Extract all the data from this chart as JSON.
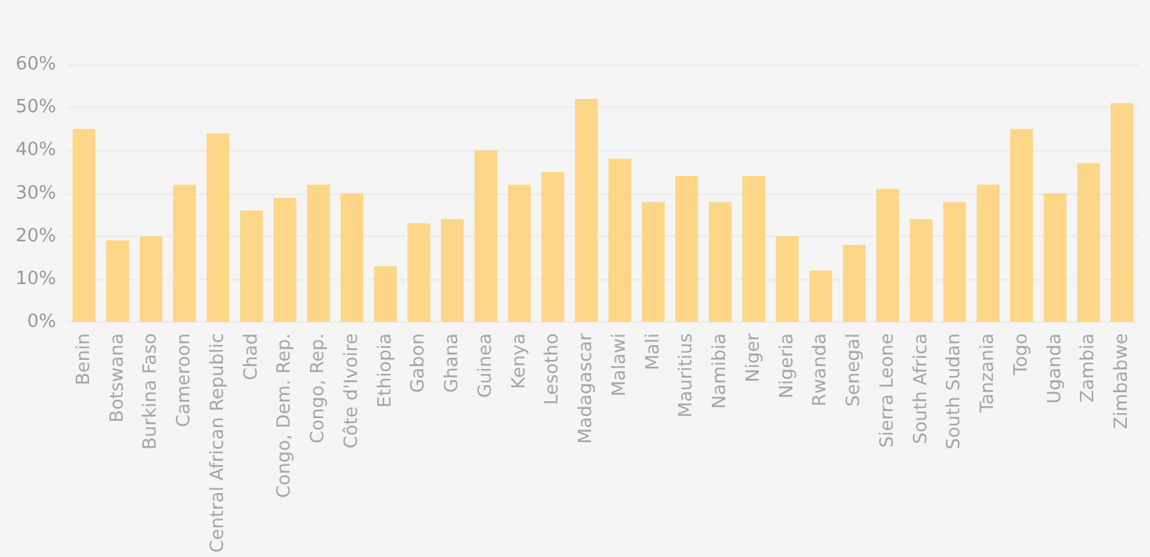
{
  "chart_data": {
    "type": "bar",
    "categories": [
      "Benin",
      "Botswana",
      "Burkina Faso",
      "Cameroon",
      "Central African Republic",
      "Chad",
      "Congo, Dem. Rep.",
      "Congo, Rep.",
      "Côte d'Ivoire",
      "Ethiopia",
      "Gabon",
      "Ghana",
      "Guinea",
      "Kenya",
      "Lesotho",
      "Madagascar",
      "Malawi",
      "Mali",
      "Mauritius",
      "Namibia",
      "Niger",
      "Nigeria",
      "Rwanda",
      "Senegal",
      "Sierra Leone",
      "South Africa",
      "South Sudan",
      "Tanzania",
      "Togo",
      "Uganda",
      "Zambia",
      "Zimbabwe"
    ],
    "values": [
      45,
      19,
      20,
      32,
      44,
      26,
      29,
      32,
      30,
      13,
      23,
      24,
      40,
      32,
      35,
      52,
      38,
      28,
      34,
      28,
      34,
      20,
      12,
      18,
      31,
      24,
      28,
      32,
      45,
      30,
      37,
      51
    ],
    "color": "#fed688",
    "ylim": [
      0,
      60
    ],
    "yticks": [
      {
        "value": 0,
        "label": "0%"
      },
      {
        "value": 10,
        "label": "10%"
      },
      {
        "value": 20,
        "label": "20%"
      },
      {
        "value": 30,
        "label": "30%"
      },
      {
        "value": 40,
        "label": "40%"
      },
      {
        "value": 50,
        "label": "50%"
      },
      {
        "value": 60,
        "label": "60%"
      }
    ],
    "grid": "y"
  }
}
